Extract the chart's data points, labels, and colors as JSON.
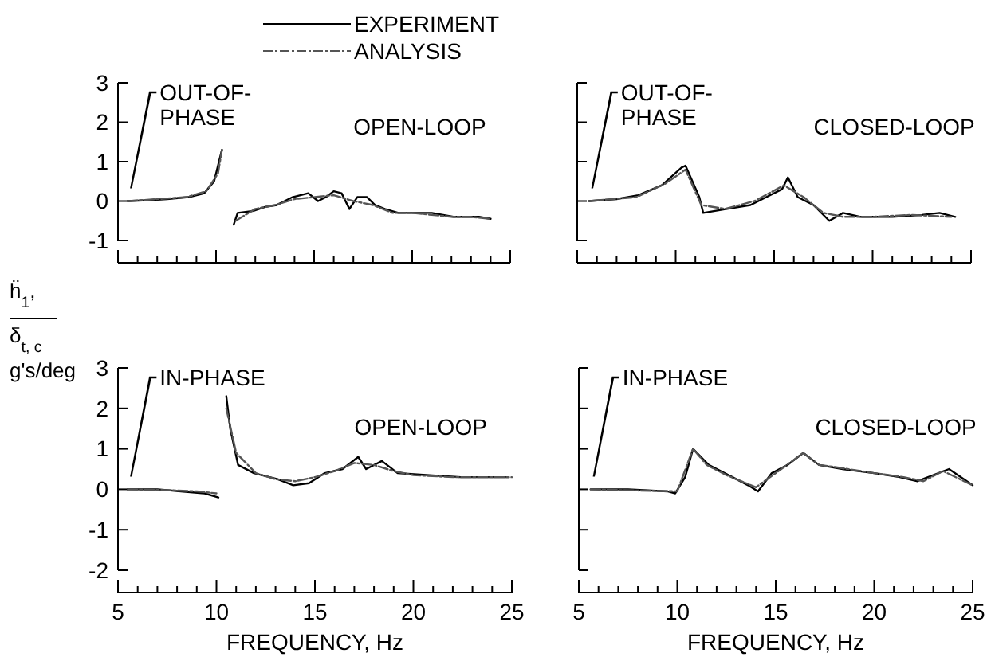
{
  "chart_data": [
    {
      "type": "line",
      "xlim": [
        5,
        25
      ],
      "xticks": [
        5,
        {
          "value": 6,
          "label": null
        },
        {
          "value": 7,
          "label": null
        },
        {
          "value": 8,
          "label": null
        },
        {
          "value": 9,
          "label": null
        },
        10,
        {
          "value": 11,
          "label": null
        },
        {
          "value": 12,
          "label": null
        },
        {
          "value": 13,
          "label": null
        },
        {
          "value": 14,
          "label": null
        },
        15,
        {
          "value": 16,
          "label": null
        },
        {
          "value": 17,
          "label": null
        },
        {
          "value": 18,
          "label": null
        },
        {
          "value": 19,
          "label": null
        },
        20,
        {
          "value": 21,
          "label": null
        },
        {
          "value": 22,
          "label": null
        },
        {
          "value": 23,
          "label": null
        },
        {
          "value": 24,
          "label": null
        },
        25
      ],
      "ylim": [
        -1,
        3
      ],
      "yticks": [
        -1,
        0,
        1,
        2,
        3
      ],
      "tick_labels": "y",
      "legend": "top right",
      "series": [
        {
          "name": "EXPERIMENT",
          "color": "#000000",
          "line_style": "solid",
          "x": [
            5.5,
            6.5,
            7.5,
            8.6,
            9.4,
            9.9,
            10.3,
            10.6,
            10.9,
            11.1,
            11.9,
            12.5,
            13.1,
            13.9,
            14.7,
            15.2,
            15.6,
            16.0,
            16.4,
            16.8,
            17.2,
            17.7,
            18.1,
            18.6,
            19.3,
            20.2,
            21,
            22.1,
            23.4,
            24
          ],
          "values": [
            0,
            0.02,
            0.05,
            0.1,
            0.2,
            0.5,
            1.3,
            null,
            -0.6,
            -0.3,
            -0.25,
            -0.15,
            -0.1,
            0.1,
            0.2,
            0,
            0.1,
            0.25,
            0.2,
            -0.2,
            0.1,
            0.1,
            -0.1,
            -0.2,
            -0.3,
            -0.3,
            -0.3,
            -0.4,
            -0.4,
            -0.45
          ]
        },
        {
          "name": "ANALYSIS",
          "color": "#555555",
          "line_style": "dashed",
          "x": [
            5.5,
            7,
            8.5,
            9.5,
            10.1,
            10.3,
            10.7,
            11,
            12,
            13,
            14,
            15,
            16,
            17,
            18,
            19,
            20,
            21,
            22,
            23,
            24
          ],
          "values": [
            0,
            0.05,
            0.1,
            0.25,
            0.7,
            1.3,
            null,
            -0.5,
            -0.2,
            -0.1,
            0.05,
            0.1,
            0.15,
            0,
            -0.1,
            -0.3,
            -0.3,
            -0.35,
            -0.4,
            -0.4,
            -0.45
          ]
        }
      ],
      "annotations": [
        "OUT-OF-PHASE",
        "OPEN-LOOP"
      ]
    },
    {
      "type": "line",
      "xlim": [
        5,
        25
      ],
      "xticks": [
        5,
        {
          "value": 6,
          "label": null
        },
        {
          "value": 7,
          "label": null
        },
        {
          "value": 8,
          "label": null
        },
        {
          "value": 9,
          "label": null
        },
        10,
        {
          "value": 11,
          "label": null
        },
        {
          "value": 12,
          "label": null
        },
        {
          "value": 13,
          "label": null
        },
        {
          "value": 14,
          "label": null
        },
        15,
        {
          "value": 16,
          "label": null
        },
        {
          "value": 17,
          "label": null
        },
        {
          "value": 18,
          "label": null
        },
        {
          "value": 19,
          "label": null
        },
        20,
        {
          "value": 21,
          "label": null
        },
        {
          "value": 22,
          "label": null
        },
        {
          "value": 23,
          "label": null
        },
        {
          "value": 24,
          "label": null
        },
        25
      ],
      "ylim": [
        -1,
        3
      ],
      "yticks": [
        -1,
        0,
        1,
        2,
        3
      ],
      "tick_labels": false,
      "series": [
        {
          "color": "#000000",
          "line_style": "solid",
          "x": [
            5.6,
            7,
            8.1,
            9.3,
            10.3,
            10.5,
            11.2,
            11.4,
            12.6,
            13.8,
            14.6,
            15.4,
            15.7,
            16.2,
            17,
            17.8,
            18.5,
            19.4,
            21,
            22.5,
            23.4,
            24.2
          ],
          "values": [
            0,
            0.05,
            0.15,
            0.4,
            0.85,
            0.9,
            0.1,
            -0.3,
            -0.2,
            -0.1,
            0.1,
            0.3,
            0.6,
            0.1,
            -0.1,
            -0.5,
            -0.3,
            -0.4,
            -0.4,
            -0.35,
            -0.3,
            -0.4
          ]
        },
        {
          "color": "#555555",
          "line_style": "dashed",
          "x": [
            5.6,
            8,
            9.5,
            10.5,
            11.3,
            12.5,
            14,
            15.5,
            16.5,
            17.5,
            18.5,
            20,
            22,
            24
          ],
          "values": [
            0,
            0.1,
            0.45,
            0.8,
            -0.1,
            -0.2,
            0,
            0.4,
            0.1,
            -0.3,
            -0.4,
            -0.4,
            -0.35,
            -0.4
          ]
        }
      ],
      "annotations": [
        "OUT-OF-PHASE",
        "CLOSED-LOOP"
      ]
    },
    {
      "type": "line",
      "xlim": [
        5,
        25
      ],
      "xticks": [
        5,
        {
          "value": 6,
          "label": null
        },
        {
          "value": 7,
          "label": null
        },
        {
          "value": 8,
          "label": null
        },
        {
          "value": 9,
          "label": null
        },
        10,
        {
          "value": 11,
          "label": null
        },
        {
          "value": 12,
          "label": null
        },
        {
          "value": 13,
          "label": null
        },
        {
          "value": 14,
          "label": null
        },
        15,
        {
          "value": 16,
          "label": null
        },
        {
          "value": 17,
          "label": null
        },
        {
          "value": 18,
          "label": null
        },
        {
          "value": 19,
          "label": null
        },
        20,
        {
          "value": 21,
          "label": null
        },
        {
          "value": 22,
          "label": null
        },
        {
          "value": 23,
          "label": null
        },
        {
          "value": 24,
          "label": null
        },
        25
      ],
      "ylim": [
        -2,
        3
      ],
      "yticks": [
        -2,
        -1,
        0,
        1,
        2,
        3
      ],
      "xlabel": "FREQUENCY, Hz",
      "ylabel": "ḧ$_{1}$, δ$_{t, c}$ g's/deg",
      "series": [
        {
          "color": "#000000",
          "line_style": "solid",
          "x": [
            5.5,
            7,
            8.2,
            9.4,
            10.1,
            10.3,
            10.5,
            10.7,
            11.1,
            11.9,
            13.1,
            13.9,
            14.7,
            15.5,
            16.4,
            17.2,
            17.6,
            18.4,
            19.2,
            20.8,
            22.4,
            24.8
          ],
          "values": [
            0,
            0,
            -0.05,
            -0.1,
            -0.2,
            null,
            2.3,
            1.5,
            0.6,
            0.4,
            0.25,
            0.1,
            0.15,
            0.4,
            0.5,
            0.8,
            0.5,
            0.7,
            0.4,
            0.35,
            0.3,
            0.3
          ]
        },
        {
          "color": "#555555",
          "line_style": "dashed",
          "x": [
            5.5,
            7.5,
            9,
            10,
            10.3,
            10.5,
            11,
            12,
            13,
            14,
            15,
            16,
            17,
            18,
            19,
            20,
            22,
            24,
            25
          ],
          "values": [
            0,
            -0.02,
            -0.05,
            -0.1,
            null,
            2.0,
            0.9,
            0.4,
            0.25,
            0.2,
            0.3,
            0.45,
            0.65,
            0.6,
            0.45,
            0.35,
            0.3,
            0.3,
            0.3
          ]
        }
      ],
      "annotations": [
        "IN-PHASE",
        "OPEN-LOOP"
      ]
    },
    {
      "type": "line",
      "xlim": [
        5,
        25
      ],
      "xticks": [
        5,
        {
          "value": 6,
          "label": null
        },
        {
          "value": 7,
          "label": null
        },
        {
          "value": 8,
          "label": null
        },
        {
          "value": 9,
          "label": null
        },
        10,
        {
          "value": 11,
          "label": null
        },
        {
          "value": 12,
          "label": null
        },
        {
          "value": 13,
          "label": null
        },
        {
          "value": 14,
          "label": null
        },
        15,
        {
          "value": 16,
          "label": null
        },
        {
          "value": 17,
          "label": null
        },
        {
          "value": 18,
          "label": null
        },
        {
          "value": 19,
          "label": null
        },
        20,
        {
          "value": 21,
          "label": null
        },
        {
          "value": 22,
          "label": null
        },
        {
          "value": 23,
          "label": null
        },
        {
          "value": 24,
          "label": null
        },
        25
      ],
      "ylim": [
        -2,
        3
      ],
      "yticks": [
        -2,
        -1,
        0,
        1,
        2,
        3
      ],
      "tick_labels": "x",
      "xlabel": "FREQUENCY, Hz",
      "series": [
        {
          "color": "#000000",
          "line_style": "solid",
          "x": [
            5.6,
            7.5,
            9.5,
            9.9,
            10.4,
            10.8,
            11.6,
            12.8,
            13.6,
            14.1,
            14.8,
            15.6,
            16.4,
            17.2,
            18.4,
            20,
            21.3,
            22.2,
            23.8,
            25
          ],
          "values": [
            0,
            0,
            -0.05,
            -0.1,
            0.3,
            1.0,
            0.6,
            0.3,
            0.1,
            -0.05,
            0.4,
            0.6,
            0.9,
            0.6,
            0.5,
            0.4,
            0.3,
            0.2,
            0.5,
            0.1
          ]
        },
        {
          "color": "#555555",
          "line_style": "dashed",
          "x": [
            5.6,
            8,
            10,
            10.8,
            11.5,
            12.5,
            14,
            15,
            16.4,
            17.2,
            18,
            20,
            21.5,
            22.5,
            23.5,
            25
          ],
          "values": [
            0,
            -0.03,
            -0.05,
            1.0,
            0.6,
            0.35,
            0.05,
            0.4,
            0.9,
            0.6,
            0.55,
            0.4,
            0.3,
            0.2,
            0.45,
            0.1
          ]
        }
      ],
      "annotations": [
        "IN-PHASE",
        "CLOSED-LOOP"
      ]
    }
  ]
}
